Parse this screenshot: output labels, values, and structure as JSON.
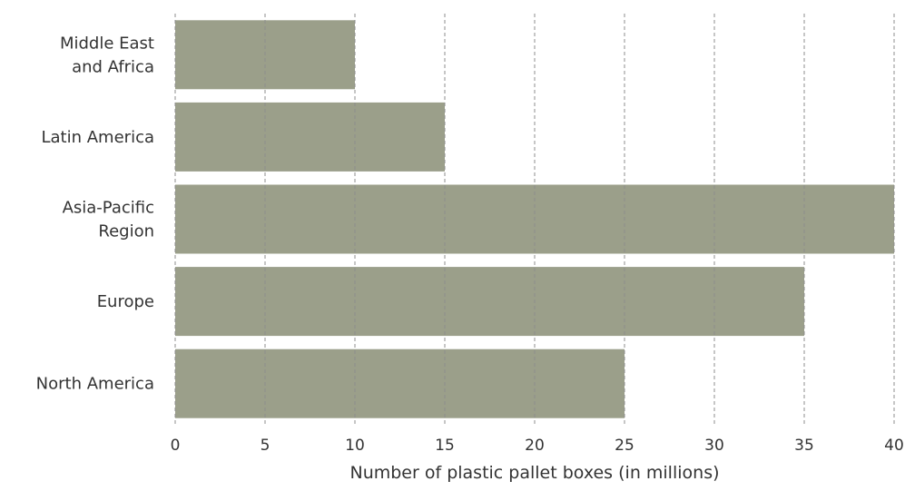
{
  "chart_data": {
    "type": "bar",
    "orientation": "horizontal",
    "categories": [
      "Middle East and Africa",
      "Latin America",
      "Asia-Pacific Region",
      "Europe",
      "North America"
    ],
    "category_lines": [
      [
        "Middle East",
        "and Africa"
      ],
      [
        "Latin America"
      ],
      [
        "Asia-Pacific",
        "Region"
      ],
      [
        "Europe"
      ],
      [
        "North America"
      ]
    ],
    "values": [
      10,
      15,
      40,
      35,
      25
    ],
    "xlabel": "Number of plastic pallet boxes (in millions)",
    "ylabel": "",
    "xlim": [
      0,
      40
    ],
    "xticks": [
      "0",
      "5",
      "10",
      "15",
      "20",
      "25",
      "30",
      "35",
      "40"
    ],
    "grid": "vertical dashed",
    "bar_color": "#9b9f8a"
  }
}
